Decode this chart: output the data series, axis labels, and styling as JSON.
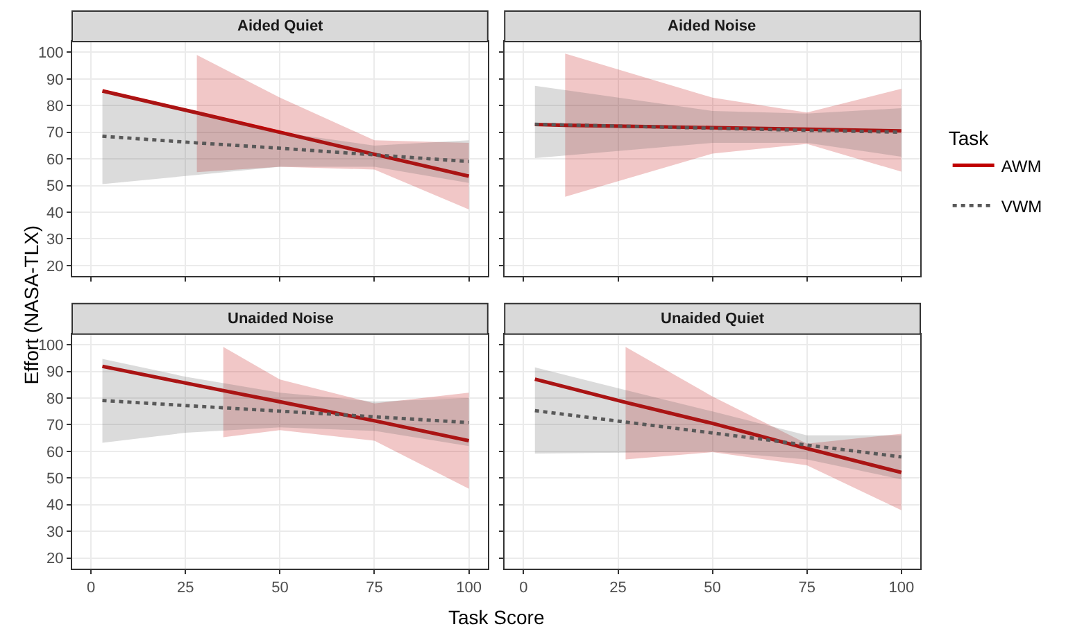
{
  "chart_data": [
    {
      "type": "line",
      "title": "Aided Quiet",
      "ylabel": "Effort (NASA-TLX)",
      "legend_title": "Task",
      "legend": "right",
      "grid": true,
      "tick_labels": "y",
      "xlim": [
        -5,
        105
      ],
      "xticks": [
        0,
        25,
        50,
        75,
        100
      ],
      "ylim": [
        16,
        104
      ],
      "yticks": [
        20,
        30,
        40,
        50,
        60,
        70,
        80,
        90,
        100
      ],
      "marker": "none",
      "series": [
        {
          "name": "AWM",
          "color": "#c00000",
          "line_style": "solid",
          "x": [
            3,
            28,
            50,
            75,
            100
          ],
          "values": [
            85.5,
            77.3,
            70,
            61.7,
            53.5
          ],
          "lower": [
            null,
            55,
            57,
            56,
            41
          ],
          "upper": [
            null,
            99,
            83,
            67,
            66
          ]
        },
        {
          "name": "VWM",
          "color": "#595959",
          "line_style": "dotted",
          "x": [
            3,
            28,
            50,
            75,
            100
          ],
          "values": [
            68.5,
            66,
            64,
            61.5,
            59
          ],
          "lower": [
            50.5,
            54,
            57,
            57,
            51
          ],
          "upper": [
            86,
            78,
            70,
            65,
            67
          ]
        }
      ]
    },
    {
      "type": "line",
      "title": "Aided Noise",
      "grid": true,
      "tick_labels": false,
      "xlim": [
        -5,
        105
      ],
      "xticks": [
        0,
        25,
        50,
        75,
        100
      ],
      "ylim": [
        16,
        104
      ],
      "yticks": [
        20,
        30,
        40,
        50,
        60,
        70,
        80,
        90,
        100
      ],
      "marker": "none",
      "series": [
        {
          "name": "AWM",
          "color": "#c00000",
          "line_style": "solid",
          "x": [
            3,
            11,
            50,
            75,
            100
          ],
          "values": [
            72.9,
            72.6,
            71.7,
            71.1,
            70.5
          ],
          "lower": [
            null,
            45.8,
            62,
            65.6,
            55.2
          ],
          "upper": [
            null,
            99.5,
            83,
            77.4,
            86.3
          ]
        },
        {
          "name": "VWM",
          "color": "#595959",
          "line_style": "dotted",
          "x": [
            3,
            50,
            75,
            100
          ],
          "values": [
            73,
            71.5,
            70.7,
            70
          ],
          "lower": [
            60.3,
            66,
            66,
            60.8
          ],
          "upper": [
            87.4,
            78,
            77,
            79
          ]
        }
      ]
    },
    {
      "type": "line",
      "title": "Unaided Noise",
      "xlabel": "Task Score",
      "grid": true,
      "xlim": [
        -5,
        105
      ],
      "xticks": [
        0,
        25,
        50,
        75,
        100
      ],
      "ylim": [
        16,
        104
      ],
      "yticks": [
        20,
        30,
        40,
        50,
        60,
        70,
        80,
        90,
        100
      ],
      "marker": "none",
      "series": [
        {
          "name": "AWM",
          "color": "#c00000",
          "line_style": "solid",
          "x": [
            3,
            35,
            50,
            75,
            100
          ],
          "values": [
            91.9,
            82.8,
            78.6,
            71.5,
            64
          ],
          "lower": [
            null,
            65.3,
            68,
            64,
            46
          ],
          "upper": [
            null,
            99.2,
            87,
            78,
            82
          ]
        },
        {
          "name": "VWM",
          "color": "#595959",
          "line_style": "dotted",
          "x": [
            3,
            25,
            50,
            75,
            100
          ],
          "values": [
            79.1,
            77.2,
            75.1,
            73,
            70.8
          ],
          "lower": [
            63.2,
            67,
            69,
            67.7,
            62
          ],
          "upper": [
            94.7,
            88,
            82,
            78.7,
            80
          ]
        }
      ]
    },
    {
      "type": "line",
      "title": "Unaided Quiet",
      "grid": true,
      "tick_labels": "x",
      "xlim": [
        -5,
        105
      ],
      "xticks": [
        0,
        25,
        50,
        75,
        100
      ],
      "ylim": [
        16,
        104
      ],
      "yticks": [
        20,
        30,
        40,
        50,
        60,
        70,
        80,
        90,
        100
      ],
      "marker": "none",
      "series": [
        {
          "name": "AWM",
          "color": "#c00000",
          "line_style": "solid",
          "x": [
            3,
            27,
            50,
            75,
            100
          ],
          "values": [
            87.1,
            78.4,
            70.5,
            61.1,
            52.1
          ],
          "lower": [
            null,
            57,
            59.7,
            54.8,
            37.9
          ],
          "upper": [
            null,
            99.2,
            80.6,
            62.9,
            66.6
          ]
        },
        {
          "name": "VWM",
          "color": "#595959",
          "line_style": "dotted",
          "x": [
            3,
            27,
            50,
            75,
            100
          ],
          "values": [
            75.3,
            71,
            66.9,
            62.4,
            57.9
          ],
          "lower": [
            59.2,
            59.5,
            60,
            57,
            49.5
          ],
          "upper": [
            91.5,
            83,
            75,
            66,
            66
          ]
        }
      ]
    }
  ]
}
